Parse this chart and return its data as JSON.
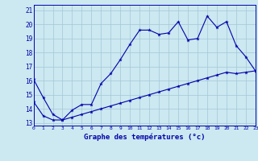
{
  "x": [
    0,
    1,
    2,
    3,
    4,
    5,
    6,
    7,
    8,
    9,
    10,
    11,
    12,
    13,
    14,
    15,
    16,
    17,
    18,
    19,
    20,
    21,
    22,
    23
  ],
  "upper": [
    16.1,
    14.8,
    13.6,
    13.2,
    13.9,
    14.3,
    14.3,
    15.8,
    16.5,
    17.5,
    18.6,
    19.6,
    19.6,
    19.3,
    19.4,
    20.2,
    18.9,
    19.0,
    20.6,
    19.8,
    20.2,
    18.5,
    17.7,
    16.7
  ],
  "lower": [
    14.5,
    13.5,
    13.2,
    13.2,
    13.4,
    13.6,
    13.8,
    14.0,
    14.2,
    14.4,
    14.6,
    14.8,
    15.0,
    15.2,
    15.4,
    15.6,
    15.8,
    16.0,
    16.2,
    16.4,
    16.6,
    16.5,
    16.6,
    16.7
  ],
  "line_color": "#0000aa",
  "bg_color": "#cce8f0",
  "grid_color": "#a0c8d8",
  "xlabel": "Graphe des températures (°c)",
  "xlim": [
    0,
    23
  ],
  "ylim": [
    12.8,
    21.4
  ],
  "yticks": [
    13,
    14,
    15,
    16,
    17,
    18,
    19,
    20,
    21
  ],
  "xticks": [
    0,
    1,
    2,
    3,
    4,
    5,
    6,
    7,
    8,
    9,
    10,
    11,
    12,
    13,
    14,
    15,
    16,
    17,
    18,
    19,
    20,
    21,
    22,
    23
  ]
}
